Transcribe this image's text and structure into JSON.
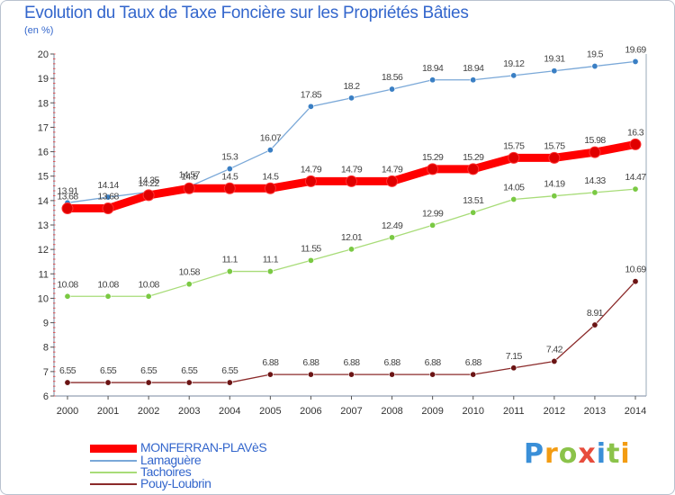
{
  "title": "Evolution du Taux de Taxe Foncière sur les Propriétés Bâties",
  "subtitle": "(en %)",
  "logo": {
    "letters": [
      {
        "ch": "P",
        "color": "#3a8fd8"
      },
      {
        "ch": "r",
        "color": "#f39c12"
      },
      {
        "ch": "o",
        "color": "#8bc34a"
      },
      {
        "ch": "x",
        "color": "#e74c3c"
      },
      {
        "ch": "i",
        "color": "#3a8fd8"
      },
      {
        "ch": "t",
        "color": "#8bc34a"
      },
      {
        "ch": "i",
        "color": "#f39c12"
      }
    ]
  },
  "chart_data": {
    "type": "line",
    "title": "Evolution du Taux de Taxe Foncière sur les Propriétés Bâties",
    "ylabel": "(en %)",
    "xlabel": "",
    "x": [
      2000,
      2001,
      2002,
      2003,
      2004,
      2005,
      2006,
      2007,
      2008,
      2009,
      2010,
      2011,
      2012,
      2013,
      2014
    ],
    "ylim": [
      6,
      20
    ],
    "yticks": [
      6,
      7,
      8,
      9,
      10,
      11,
      12,
      13,
      14,
      15,
      16,
      17,
      18,
      19,
      20
    ],
    "grid": false,
    "legend": "bottom-left",
    "series": [
      {
        "name": "MONFERRAN-PLAVèS",
        "color": "#ff0000",
        "point_color": "#e00000",
        "values": [
          13.68,
          13.68,
          14.22,
          14.5,
          14.5,
          14.5,
          14.79,
          14.79,
          14.79,
          15.29,
          15.29,
          15.75,
          15.75,
          15.98,
          16.3
        ],
        "labels": [
          "13.68",
          "13.68",
          "14.22",
          "14.5",
          "14.5",
          "14.5",
          "14.79",
          "14.79",
          "14.79",
          "15.29",
          "15.29",
          "15.75",
          "15.75",
          "15.98",
          "16.3"
        ]
      },
      {
        "name": "Lamaguère",
        "color": "#7aa8d8",
        "point_color": "#3a7fc4",
        "values": [
          13.91,
          14.14,
          14.35,
          14.57,
          15.3,
          16.07,
          17.85,
          18.2,
          18.56,
          18.94,
          18.94,
          19.12,
          19.31,
          19.5,
          19.69
        ],
        "labels": [
          "13.91",
          "14.14",
          "14.35",
          "14.57",
          "15.3",
          "16.07",
          "17.85",
          "18.2",
          "18.56",
          "18.94",
          "18.94",
          "19.12",
          "19.31",
          "19.5",
          "19.69"
        ]
      },
      {
        "name": "Tachoires",
        "color": "#a8dc78",
        "point_color": "#7ac943",
        "values": [
          10.08,
          10.08,
          10.08,
          10.58,
          11.1,
          11.1,
          11.55,
          12.01,
          12.49,
          12.99,
          13.51,
          14.05,
          14.19,
          14.33,
          14.47
        ],
        "labels": [
          "10.08",
          "10.08",
          "10.08",
          "10.58",
          "11.1",
          "11.1",
          "11.55",
          "12.01",
          "12.49",
          "12.99",
          "13.51",
          "14.05",
          "14.19",
          "14.33",
          "14.47"
        ]
      },
      {
        "name": "Pouy-Loubrin",
        "color": "#8b2a2a",
        "point_color": "#6b1414",
        "values": [
          6.55,
          6.55,
          6.55,
          6.55,
          6.55,
          6.88,
          6.88,
          6.88,
          6.88,
          6.88,
          6.88,
          7.15,
          7.42,
          8.91,
          10.69
        ],
        "labels": [
          "6.55",
          "6.55",
          "6.55",
          "6.55",
          "6.55",
          "6.88",
          "6.88",
          "6.88",
          "6.88",
          "6.88",
          "6.88",
          "7.15",
          "7.42",
          "8.91",
          "10.69"
        ]
      }
    ]
  }
}
